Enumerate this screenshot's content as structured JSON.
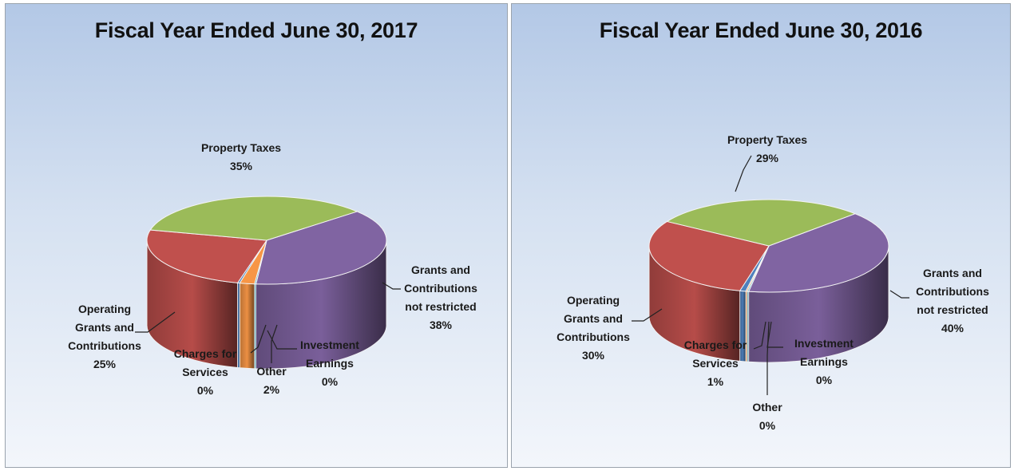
{
  "chart_data": [
    {
      "type": "pie",
      "title": "Fiscal Year Ended June 30, 2017",
      "slices": [
        {
          "label": [
            "Grants and",
            "Contributions",
            "not restricted"
          ],
          "pct_text": "38%",
          "value": 38,
          "color": "#8064a2"
        },
        {
          "label": [
            "Investment",
            "Earnings"
          ],
          "pct_text": "0%",
          "value": 0.2,
          "color": "#4bacc6"
        },
        {
          "label": [
            "Other"
          ],
          "pct_text": "2%",
          "value": 2,
          "color": "#f79646"
        },
        {
          "label": [
            "Charges for",
            "Services"
          ],
          "pct_text": "0%",
          "value": 0.3,
          "color": "#4f81bd"
        },
        {
          "label": [
            "Operating",
            "Grants and",
            "Contributions"
          ],
          "pct_text": "25%",
          "value": 25,
          "color": "#c0504d"
        },
        {
          "label": [
            "Property Taxes"
          ],
          "pct_text": "35%",
          "value": 35,
          "color": "#9bbb59"
        }
      ]
    },
    {
      "type": "pie",
      "title": "Fiscal Year Ended June 30, 2016",
      "slices": [
        {
          "label": [
            "Grants and",
            "Contributions",
            "not restricted"
          ],
          "pct_text": "40%",
          "value": 40,
          "color": "#8064a2"
        },
        {
          "label": [
            "Investment",
            "Earnings"
          ],
          "pct_text": "0%",
          "value": 0.2,
          "color": "#4bacc6"
        },
        {
          "label": [
            "Other"
          ],
          "pct_text": "0%",
          "value": 0.2,
          "color": "#f79646"
        },
        {
          "label": [
            "Charges for",
            "Services"
          ],
          "pct_text": "1%",
          "value": 0.8,
          "color": "#4f81bd"
        },
        {
          "label": [
            "Operating",
            "Grants and",
            "Contributions"
          ],
          "pct_text": "30%",
          "value": 30,
          "color": "#c0504d"
        },
        {
          "label": [
            "Property Taxes"
          ],
          "pct_text": "29%",
          "value": 29,
          "color": "#9bbb59"
        }
      ]
    }
  ]
}
